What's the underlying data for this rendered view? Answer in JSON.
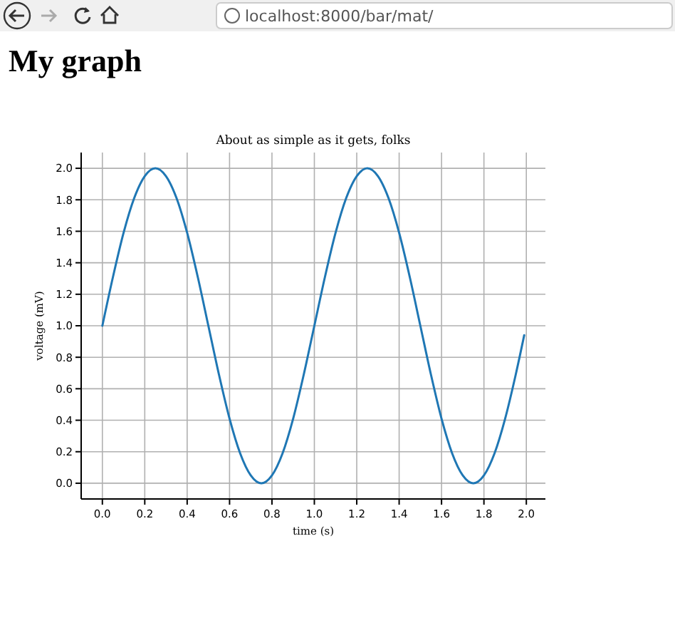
{
  "chart_data": {
    "type": "line",
    "title": "My graph",
    "subtitle": "About as simple as it gets, folks",
    "xlabel": "time (s)",
    "ylabel": "voltage (mV)",
    "annotations": [
      "localhost:8000/bar/mat/"
    ],
    "series": [
      {
        "color": "#1f77b4",
        "x": [
          0,
          0.05,
          0.1,
          0.15,
          0.2,
          0.25,
          0.3,
          0.35,
          0.4,
          0.45,
          0.5,
          0.55,
          0.6,
          0.65,
          0.7,
          0.75,
          0.8,
          0.85,
          0.9,
          0.95,
          1.0,
          1.05,
          1.1,
          1.15,
          1.2,
          1.25,
          1.3,
          1.35,
          1.4,
          1.45,
          1.5,
          1.55,
          1.6,
          1.65,
          1.7,
          1.75,
          1.8,
          1.85,
          1.9,
          1.95,
          1.99
        ],
        "values": [
          1,
          1.31,
          1.59,
          1.81,
          1.95,
          2,
          1.95,
          1.81,
          1.59,
          1.31,
          1,
          0.69,
          0.41,
          0.19,
          0.05,
          0,
          0.05,
          0.19,
          0.41,
          0.69,
          1,
          1.31,
          1.59,
          1.81,
          1.95,
          2,
          1.95,
          1.81,
          1.59,
          1.31,
          1,
          0.69,
          0.41,
          0.19,
          0.05,
          0,
          0.05,
          0.19,
          0.41,
          0.69,
          0.94
        ]
      }
    ],
    "xlim": [
      -0.1,
      2.09
    ],
    "ylim": [
      -0.1,
      2.1
    ],
    "xticks": [
      {
        "value": 0,
        "label": "0.0"
      },
      {
        "value": 0.2,
        "label": "0.2"
      },
      {
        "value": 0.4,
        "label": "0.4"
      },
      {
        "value": 0.6,
        "label": "0.6"
      },
      {
        "value": 0.8,
        "label": "0.8"
      },
      {
        "value": 1,
        "label": "1.0"
      },
      {
        "value": 1.2,
        "label": "1.2"
      },
      {
        "value": 1.4,
        "label": "1.4"
      },
      {
        "value": 1.6,
        "label": "1.6"
      },
      {
        "value": 1.8,
        "label": "1.8"
      },
      {
        "value": 2,
        "label": "2.0"
      }
    ],
    "yticks": [
      {
        "value": 0,
        "label": "0.0"
      },
      {
        "value": 0.2,
        "label": "0.2"
      },
      {
        "value": 0.4,
        "label": "0.4"
      },
      {
        "value": 0.6,
        "label": "0.6"
      },
      {
        "value": 0.8,
        "label": "0.8"
      },
      {
        "value": 1,
        "label": "1.0"
      },
      {
        "value": 1.2,
        "label": "1.2"
      },
      {
        "value": 1.4,
        "label": "1.4"
      },
      {
        "value": 1.6,
        "label": "1.6"
      },
      {
        "value": 1.8,
        "label": "1.8"
      },
      {
        "value": 2,
        "label": "2.0"
      }
    ],
    "grid": true,
    "marker": "none",
    "line_style": "solid"
  }
}
